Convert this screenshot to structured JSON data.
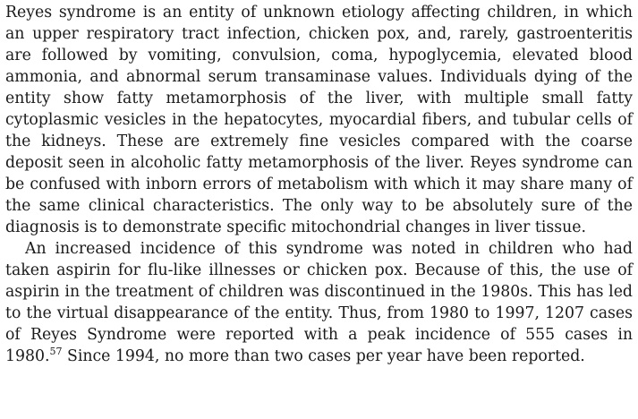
{
  "document": {
    "paragraphs": [
      {
        "text": "Reyes syndrome is an entity of unknown etiology affecting children, in which an upper respiratory tract infection, chicken pox, and, rarely, gastroenteritis are followed by vomiting, convulsion, coma, hypoglycemia, elevated blood ammonia, and abnormal serum transaminase values. Individuals dying of the entity show fatty metamorphosis of the liver, with multiple small fatty cytoplasmic vesicles in the hepatocytes, myocardial fibers, and tubular cells of the kidneys. These are extremely fine vesicles compared with the coarse deposit seen in alcoholic fatty metamorphosis of the liver. Reyes syndrome can be confused with inborn errors of metabolism with which it may share many of the same clinical characteristics. The only way to be absolutely sure of the diagnosis is to demonstrate specific mitochondrial changes in liver tissue."
      },
      {
        "text_before_ref": "An increased incidence of this syndrome was noted in children who had taken aspirin for flu-like illnesses or chicken pox. Because of this, the use of aspirin in the treatment of children was discontinued in the 1980s. This has led to the virtual disappearance of the entity. Thus, from 1980 to 1997, 1207 cases of Reyes Syndrome were reported with a peak incidence of 555 cases in 1980.",
        "ref": "57",
        "text_after_ref": " Since 1994, no more than two cases per year have been reported."
      }
    ]
  }
}
